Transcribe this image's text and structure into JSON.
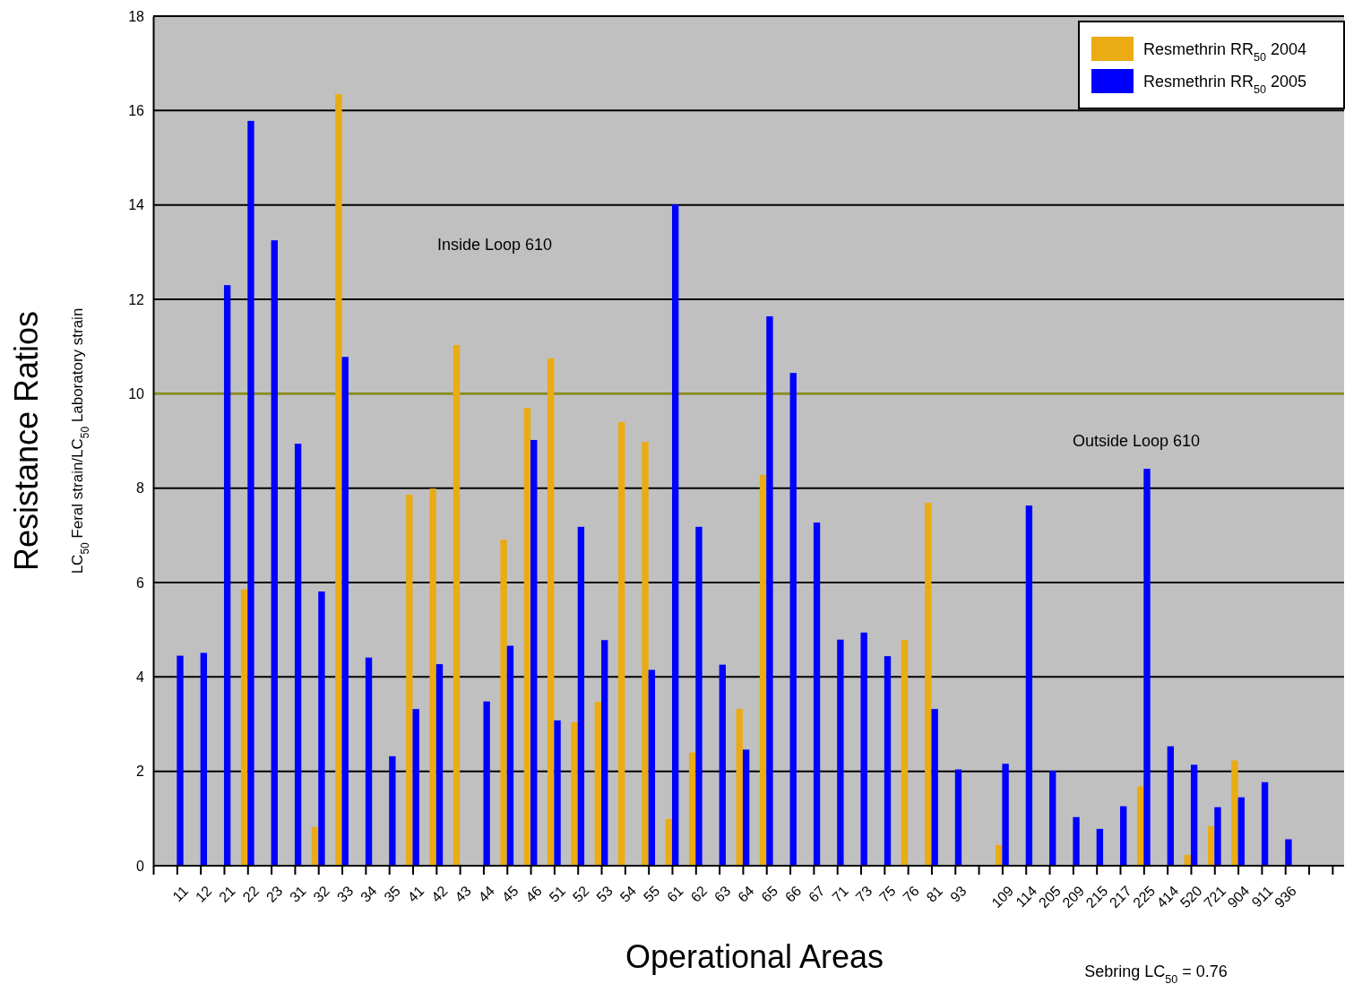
{
  "chart_data": {
    "type": "bar",
    "xlabel": "Operational Areas",
    "ylabel": "Resistance Ratios",
    "categories": [
      null,
      "11",
      "12",
      "21",
      "22",
      "23",
      "31",
      "32",
      "33",
      "34",
      "35",
      "41",
      "42",
      "43",
      "44",
      "45",
      "46",
      "51",
      "52",
      "53",
      "54",
      "55",
      "61",
      "62",
      "63",
      "64",
      "65",
      "66",
      "67",
      "71",
      "73",
      "75",
      "76",
      "81",
      "93",
      null,
      "109",
      "114",
      "205",
      "209",
      "215",
      "217",
      "225",
      "414",
      "520",
      "721",
      "904",
      "911",
      "936",
      null,
      null
    ],
    "series": [
      {
        "name": "Resmethrin RR$_{50}$ 2004",
        "color": "#eaab13",
        "values": [
          null,
          null,
          null,
          null,
          5.86,
          null,
          null,
          0.82,
          16.35,
          null,
          null,
          7.86,
          7.99,
          11.03,
          null,
          6.91,
          9.7,
          10.75,
          3.04,
          3.47,
          9.4,
          8.98,
          0.99,
          2.4,
          null,
          3.32,
          8.28,
          null,
          null,
          null,
          null,
          null,
          4.78,
          7.69,
          null,
          null,
          0.44,
          null,
          null,
          null,
          null,
          null,
          1.68,
          null,
          0.23,
          0.84,
          2.23,
          null,
          null,
          null,
          null
        ]
      },
      {
        "name": "Resmethrin RR$_{50}$ 2005",
        "color": "#0000ff",
        "values": [
          null,
          4.45,
          4.51,
          12.3,
          15.78,
          13.25,
          8.94,
          5.81,
          10.78,
          4.41,
          2.32,
          3.32,
          4.27,
          null,
          3.48,
          4.66,
          9.02,
          3.08,
          7.18,
          4.78,
          null,
          4.15,
          14.01,
          7.18,
          4.26,
          2.46,
          11.64,
          10.44,
          7.27,
          4.79,
          4.94,
          4.44,
          null,
          3.32,
          2.04,
          null,
          2.16,
          7.63,
          2.01,
          1.03,
          0.78,
          1.26,
          8.41,
          2.53,
          2.14,
          1.24,
          1.45,
          1.77,
          0.56,
          null,
          null
        ]
      }
    ],
    "ylim": [
      0,
      18
    ],
    "yticks": [
      0,
      2,
      4,
      6,
      8,
      10,
      12,
      14,
      16,
      18
    ],
    "grid": "y",
    "legend": "top right",
    "ref_lines": [
      {
        "axis": "y",
        "value": 10,
        "color": "#9a9a00"
      }
    ],
    "annotations": [
      "LC$_{50}$ Feral strain/LC$_{50}$ Laboratory strain",
      "Inside Loop 610",
      "Outside Loop 610",
      "Sebring LC$_{50}$ = 0.76"
    ]
  }
}
